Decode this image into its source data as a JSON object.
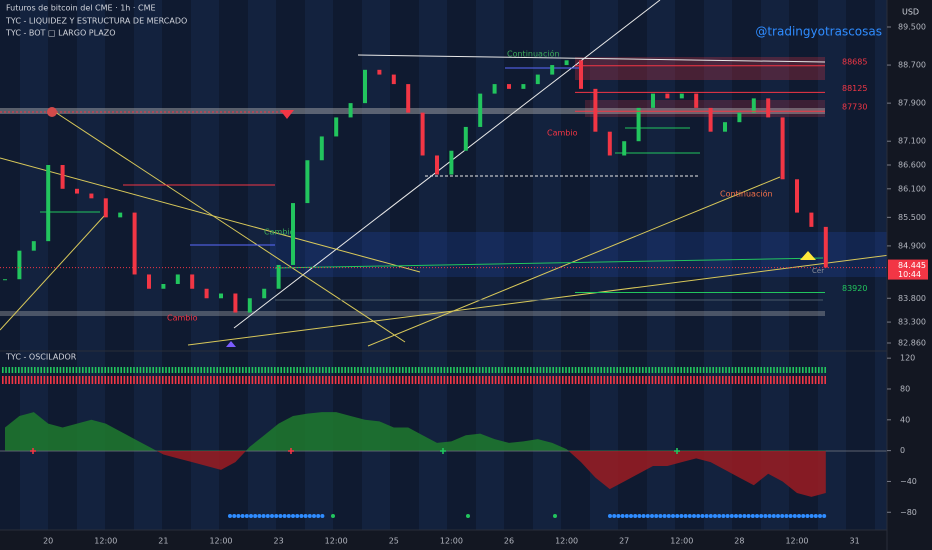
{
  "header": {
    "symbol": "Futuros de bitcoin del CME · 1h · CME",
    "indicator_1": "TYC - LIQUIDEZ Y ESTRUCTURA DE MERCADO",
    "indicator_2": "TYC - BOT □ LARGO PLAZO",
    "watermark": "@tradingyotrascosas",
    "currency": "USD"
  },
  "chart_data": [
    {
      "type": "candlestick",
      "up_color": "#22c55e",
      "down_color": "#f23645",
      "categories": [
        null,
        null,
        null,
        "20",
        null,
        null,
        null,
        "12:00",
        null,
        null,
        null,
        "21",
        null,
        null,
        null,
        "12:00",
        null,
        null,
        null,
        "23",
        null,
        null,
        null,
        "12:00",
        null,
        null,
        null,
        "25",
        null,
        null,
        null,
        "12:00",
        null,
        null,
        null,
        "26",
        null,
        null,
        null,
        "12:00",
        null,
        null,
        null,
        "27",
        null,
        null,
        null,
        "12:00",
        null,
        null,
        null,
        "28",
        null,
        null,
        null,
        "12:00",
        null,
        null,
        null,
        "31"
      ],
      "values": [
        84200,
        84800,
        85000,
        86600,
        86100,
        86000,
        85900,
        85500,
        85600,
        84300,
        84000,
        84100,
        84300,
        84000,
        83800,
        83900,
        83500,
        83800,
        84000,
        84500,
        85800,
        86700,
        87200,
        87600,
        87900,
        88600,
        88500,
        88300,
        87700,
        86800,
        86400,
        86900,
        87400,
        88100,
        88300,
        88200,
        88300,
        88500,
        88700,
        88800,
        88200,
        87300,
        86800,
        87100,
        87800,
        88100,
        88000,
        88100,
        87800,
        87300,
        87500,
        87700,
        88000,
        87600,
        86300,
        85600,
        85300,
        84445,
        null,
        null
      ],
      "ylim": [
        82713,
        90067
      ],
      "yticks": [
        {
          "value": 89500,
          "label": "89.500"
        },
        {
          "value": 88700,
          "label": "88.700"
        },
        {
          "value": 87900,
          "label": "87.900"
        },
        {
          "value": 87100,
          "label": "87.100"
        },
        {
          "value": 86600,
          "label": "86.600"
        },
        {
          "value": 86100,
          "label": "86.100"
        },
        {
          "value": 85500,
          "label": "85.500"
        },
        {
          "value": 84900,
          "label": "84.900"
        },
        {
          "value": 83800,
          "label": "83.800"
        },
        {
          "value": 83300,
          "label": "83.300"
        },
        {
          "value": 82860,
          "label": "82.860"
        }
      ],
      "levels": [
        {
          "value": 88685,
          "color": "#f23645"
        },
        {
          "value": 88125,
          "color": "#f23645"
        },
        {
          "value": 87730,
          "color": "#f23645"
        },
        {
          "value": 83920,
          "color": "#22c55e"
        }
      ],
      "last_price": {
        "value": 84445,
        "label": "84.445",
        "time": "10:44"
      },
      "annotations": [
        "Cambio",
        "Cambio",
        "Cambio",
        "Continuación",
        "Continuación",
        "Cer"
      ],
      "grid": false
    },
    {
      "type": "area",
      "title": "TYC - OSCILADOR",
      "pos_color": "#1f7a2e",
      "neg_color": "#9b1c22",
      "values": [
        30,
        45,
        50,
        35,
        30,
        35,
        40,
        35,
        25,
        15,
        5,
        -5,
        -10,
        -15,
        -20,
        -25,
        -15,
        5,
        20,
        35,
        45,
        48,
        50,
        50,
        45,
        40,
        38,
        30,
        30,
        20,
        10,
        12,
        20,
        22,
        15,
        10,
        12,
        15,
        10,
        2,
        -15,
        -35,
        -50,
        -40,
        -30,
        -20,
        -20,
        -15,
        -10,
        -15,
        -25,
        -35,
        -45,
        -30,
        -40,
        -55,
        -60,
        -55,
        null,
        null
      ],
      "ylim": [
        128,
        -116
      ],
      "yticks": [
        120,
        80,
        40,
        0,
        {
          "value": -40,
          "label": "−40"
        },
        {
          "value": -80,
          "label": "−80"
        }
      ],
      "grid": false
    }
  ]
}
